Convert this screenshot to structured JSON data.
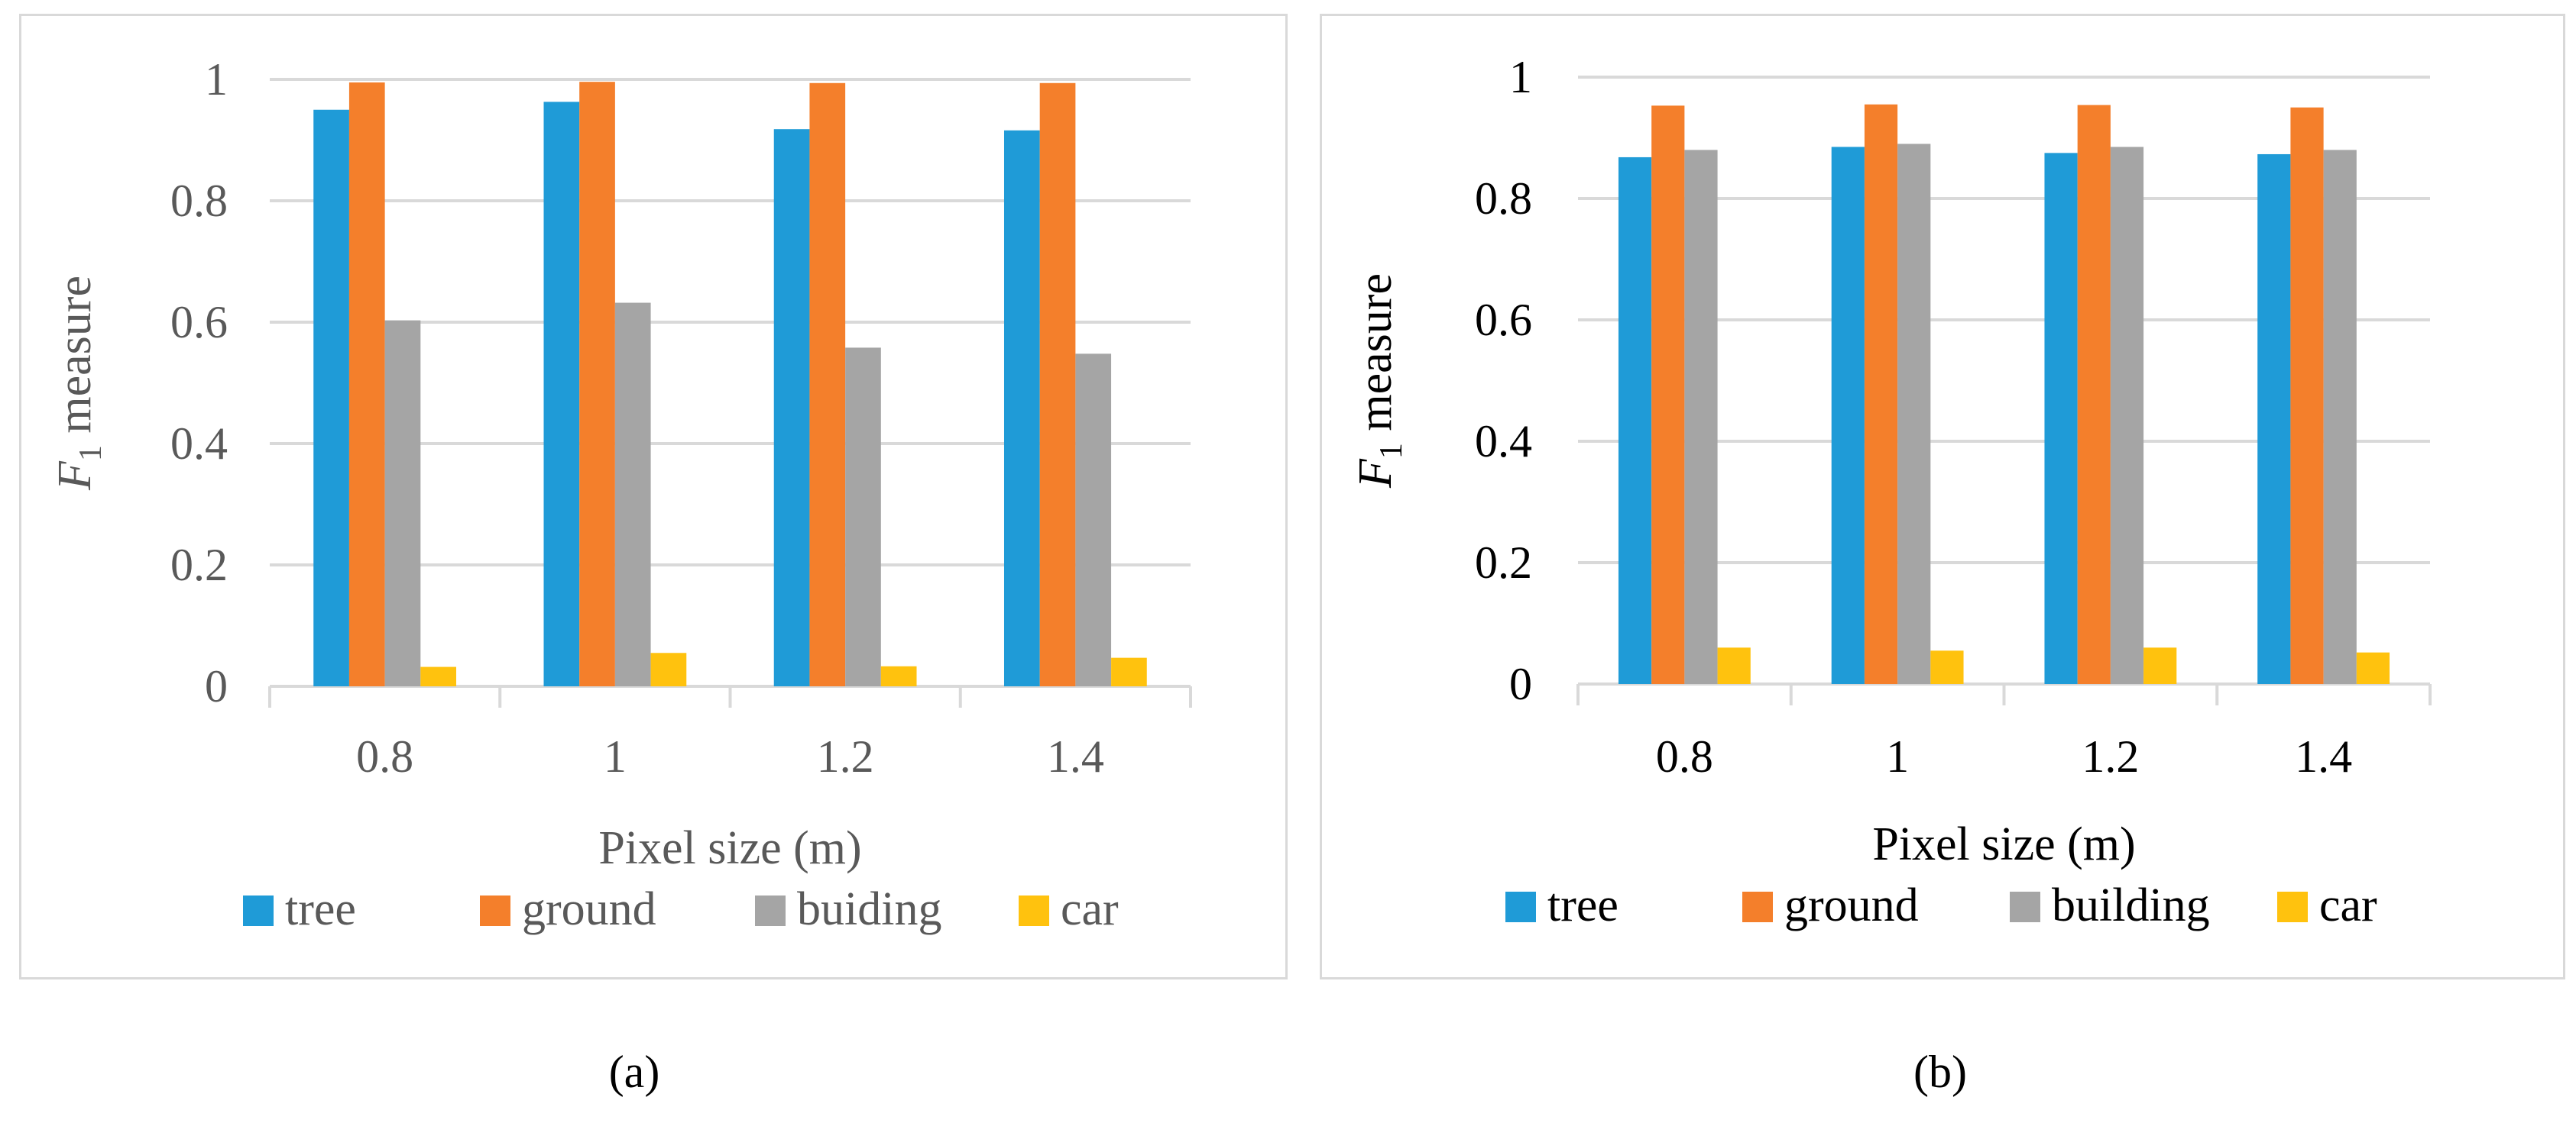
{
  "charts": {
    "a": {
      "caption": "(a)"
    },
    "b": {
      "caption": "(b)"
    }
  },
  "colors": {
    "tree": "#1f9bd7",
    "ground": "#f47f2b",
    "building": "#a5a5a5",
    "car": "#ffc20e",
    "grid": "#d9d9d9",
    "tick_text_a": "#595959",
    "tick_text_b": "#000000"
  },
  "chart_data": [
    {
      "type": "bar",
      "title": "",
      "categories": [
        "0.8",
        "1",
        "1.2",
        "1.4"
      ],
      "series": [
        {
          "name": "tree",
          "values": [
            0.95,
            0.963,
            0.918,
            0.916
          ]
        },
        {
          "name": "ground",
          "values": [
            0.995,
            0.996,
            0.994,
            0.994
          ]
        },
        {
          "name": "buiding",
          "values": [
            0.603,
            0.632,
            0.558,
            0.548
          ]
        },
        {
          "name": "car",
          "values": [
            0.032,
            0.055,
            0.033,
            0.047
          ]
        }
      ],
      "xlabel": "Pixel size (m)",
      "ylabel_italic": "F",
      "ylabel_sub": "1",
      "ylabel_rest": " measure",
      "ylim": [
        0,
        1
      ],
      "yticks": [
        "0",
        "0.2",
        "0.4",
        "0.6",
        "0.8",
        "1"
      ],
      "grid": true,
      "legend": "bottom"
    },
    {
      "type": "bar",
      "title": "",
      "categories": [
        "0.8",
        "1",
        "1.2",
        "1.4"
      ],
      "series": [
        {
          "name": "tree",
          "values": [
            0.868,
            0.885,
            0.875,
            0.873
          ]
        },
        {
          "name": "ground",
          "values": [
            0.953,
            0.955,
            0.954,
            0.95
          ]
        },
        {
          "name": "building",
          "values": [
            0.88,
            0.89,
            0.885,
            0.88
          ]
        },
        {
          "name": "car",
          "values": [
            0.06,
            0.055,
            0.06,
            0.052
          ]
        }
      ],
      "xlabel": "Pixel size (m)",
      "ylabel_italic": "F",
      "ylabel_sub": "1",
      "ylabel_rest": " measure",
      "ylim": [
        0,
        1
      ],
      "yticks": [
        "0",
        "0.2",
        "0.4",
        "0.6",
        "0.8",
        "1"
      ],
      "grid": true,
      "legend": "bottom"
    }
  ]
}
